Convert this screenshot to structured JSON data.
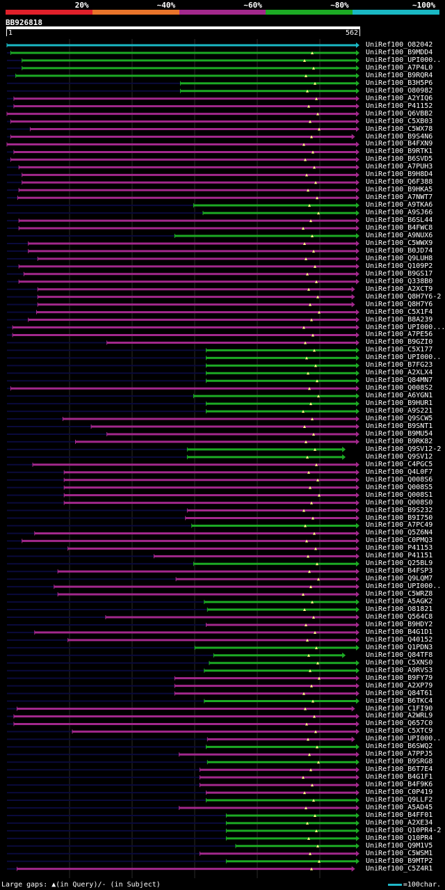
{
  "legend": {
    "segments": [
      {
        "label": "20%",
        "color": "#e0202a"
      },
      {
        "label": "~40%",
        "color": "#e8742a"
      },
      {
        "label": "~60%",
        "color": "#a2288c"
      },
      {
        "label": "~80%",
        "color": "#1caa24"
      },
      {
        "label": "~100%",
        "color": "#1ab8c4"
      }
    ]
  },
  "query": {
    "name": "BB926818",
    "start": "1",
    "end": "562"
  },
  "hits": [
    {
      "name": "UniRef100_O82042",
      "color": "teal",
      "start": 1,
      "end": 562,
      "full": true
    },
    {
      "name": "UniRef100_B9MDD4",
      "color": "green",
      "start": 7,
      "end": 562
    },
    {
      "name": "UniRef100_UPI000..",
      "color": "green",
      "start": 25,
      "end": 562
    },
    {
      "name": "UniRef100_A7P4L0",
      "color": "green",
      "start": 25,
      "end": 562
    },
    {
      "name": "UniRef100_B9RQR4",
      "color": "green",
      "start": 15,
      "end": 562
    },
    {
      "name": "UniRef100_B3H5P6",
      "color": "green",
      "start": 277,
      "end": 562
    },
    {
      "name": "UniRef100_O80982",
      "color": "green",
      "start": 277,
      "end": 562
    },
    {
      "name": "UniRef100_A2YIQ6",
      "color": "purple",
      "start": 12,
      "end": 562
    },
    {
      "name": "UniRef100_P41152",
      "color": "purple",
      "start": 12,
      "end": 562
    },
    {
      "name": "UniRef100_Q6VBB2",
      "color": "purple",
      "start": 1,
      "end": 562
    },
    {
      "name": "UniRef100_C5XB03",
      "color": "purple",
      "start": 7,
      "end": 562
    },
    {
      "name": "UniRef100_C5WX78",
      "color": "purple",
      "start": 38,
      "end": 562
    },
    {
      "name": "UniRef100_B9S4N6",
      "color": "purple",
      "start": 7,
      "end": 555
    },
    {
      "name": "UniRef100_B4FXN9",
      "color": "purple",
      "start": 1,
      "end": 562
    },
    {
      "name": "UniRef100_B9RTK1",
      "color": "purple",
      "start": 12,
      "end": 562
    },
    {
      "name": "UniRef100_B6SVD5",
      "color": "purple",
      "start": 7,
      "end": 562
    },
    {
      "name": "UniRef100_A7PUH3",
      "color": "purple",
      "start": 20,
      "end": 562
    },
    {
      "name": "UniRef100_B9H8D4",
      "color": "purple",
      "start": 25,
      "end": 562
    },
    {
      "name": "UniRef100_Q6F388",
      "color": "purple",
      "start": 25,
      "end": 562
    },
    {
      "name": "UniRef100_B9HKA5",
      "color": "purple",
      "start": 20,
      "end": 562
    },
    {
      "name": "UniRef100_A7NWT7",
      "color": "purple",
      "start": 18,
      "end": 562
    },
    {
      "name": "UniRef100_A9TKA6",
      "color": "green",
      "start": 298,
      "end": 562
    },
    {
      "name": "UniRef100_A9SJ66",
      "color": "green",
      "start": 313,
      "end": 562
    },
    {
      "name": "UniRef100_B6SL44",
      "color": "purple",
      "start": 20,
      "end": 562
    },
    {
      "name": "UniRef100_B4FWC8",
      "color": "purple",
      "start": 20,
      "end": 562
    },
    {
      "name": "UniRef100_A9NUX6",
      "color": "green",
      "start": 268,
      "end": 562
    },
    {
      "name": "UniRef100_C5WWX9",
      "color": "purple",
      "start": 35,
      "end": 562
    },
    {
      "name": "UniRef100_B0JD74",
      "color": "purple",
      "start": 35,
      "end": 562
    },
    {
      "name": "UniRef100_Q9LUH8",
      "color": "purple",
      "start": 50,
      "end": 562
    },
    {
      "name": "UniRef100_Q109P2",
      "color": "purple",
      "start": 20,
      "end": 562
    },
    {
      "name": "UniRef100_B9GS17",
      "color": "purple",
      "start": 28,
      "end": 562
    },
    {
      "name": "UniRef100_Q338B0",
      "color": "purple",
      "start": 20,
      "end": 562
    },
    {
      "name": "UniRef100_A2XCT9",
      "color": "purple",
      "start": 50,
      "end": 555
    },
    {
      "name": "UniRef100_Q8H7Y6-2",
      "color": "purple",
      "start": 50,
      "end": 555
    },
    {
      "name": "UniRef100_Q8H7Y6",
      "color": "purple",
      "start": 50,
      "end": 555
    },
    {
      "name": "UniRef100_C5X1F4",
      "color": "purple",
      "start": 48,
      "end": 562
    },
    {
      "name": "UniRef100_B8A239",
      "color": "purple",
      "start": 35,
      "end": 562
    },
    {
      "name": "UniRef100_UPI000...",
      "color": "purple",
      "start": 10,
      "end": 562
    },
    {
      "name": "UniRef100_A7PE56",
      "color": "purple",
      "start": 10,
      "end": 562
    },
    {
      "name": "UniRef100_B9GZI0",
      "color": "purple",
      "start": 160,
      "end": 562
    },
    {
      "name": "UniRef100_C5X177",
      "color": "green",
      "start": 318,
      "end": 562
    },
    {
      "name": "UniRef100_UPI000..",
      "color": "green",
      "start": 318,
      "end": 562
    },
    {
      "name": "UniRef100_B7FG23",
      "color": "green",
      "start": 318,
      "end": 562
    },
    {
      "name": "UniRef100_A2XLX4",
      "color": "green",
      "start": 318,
      "end": 562
    },
    {
      "name": "UniRef100_Q84MN7",
      "color": "green",
      "start": 318,
      "end": 562
    },
    {
      "name": "UniRef100_Q008S2",
      "color": "purple",
      "start": 7,
      "end": 562
    },
    {
      "name": "UniRef100_A6YGN1",
      "color": "green",
      "start": 298,
      "end": 562
    },
    {
      "name": "UniRef100_B9HUR1",
      "color": "green",
      "start": 318,
      "end": 562
    },
    {
      "name": "UniRef100_A9S221",
      "color": "green",
      "start": 318,
      "end": 562
    },
    {
      "name": "UniRef100_Q9SCW5",
      "color": "purple",
      "start": 90,
      "end": 562
    },
    {
      "name": "UniRef100_B9SNT1",
      "color": "purple",
      "start": 135,
      "end": 562
    },
    {
      "name": "UniRef100_B9MU54",
      "color": "purple",
      "start": 160,
      "end": 562
    },
    {
      "name": "UniRef100_B9RK82",
      "color": "purple",
      "start": 110,
      "end": 562
    },
    {
      "name": "UniRef100_Q9SV12-2",
      "color": "green",
      "start": 288,
      "end": 540
    },
    {
      "name": "UniRef100_Q9SV12",
      "color": "green",
      "start": 288,
      "end": 540
    },
    {
      "name": "UniRef100_C4PGC5",
      "color": "purple",
      "start": 42,
      "end": 562
    },
    {
      "name": "UniRef100_Q4L0F7",
      "color": "purple",
      "start": 92,
      "end": 562
    },
    {
      "name": "UniRef100_Q008S6",
      "color": "purple",
      "start": 92,
      "end": 562
    },
    {
      "name": "UniRef100_Q008S5",
      "color": "purple",
      "start": 92,
      "end": 562
    },
    {
      "name": "UniRef100_Q008S1",
      "color": "purple",
      "start": 92,
      "end": 562
    },
    {
      "name": "UniRef100_Q008S0",
      "color": "purple",
      "start": 92,
      "end": 562
    },
    {
      "name": "UniRef100_B9S232",
      "color": "purple",
      "start": 288,
      "end": 562
    },
    {
      "name": "UniRef100_B9I750",
      "color": "purple",
      "start": 285,
      "end": 562
    },
    {
      "name": "UniRef100_A7PC49",
      "color": "green",
      "start": 295,
      "end": 562
    },
    {
      "name": "UniRef100_Q5Z6N4",
      "color": "purple",
      "start": 45,
      "end": 562
    },
    {
      "name": "UniRef100_C0PMQ3",
      "color": "purple",
      "start": 25,
      "end": 562
    },
    {
      "name": "UniRef100_P41153",
      "color": "purple",
      "start": 98,
      "end": 562
    },
    {
      "name": "UniRef100_P41151",
      "color": "purple",
      "start": 235,
      "end": 562
    },
    {
      "name": "UniRef100_Q25BL9",
      "color": "green",
      "start": 298,
      "end": 562
    },
    {
      "name": "UniRef100_B4FSP3",
      "color": "purple",
      "start": 82,
      "end": 562
    },
    {
      "name": "UniRef100_Q9LQM7",
      "color": "purple",
      "start": 270,
      "end": 562
    },
    {
      "name": "UniRef100_UPI000..",
      "color": "purple",
      "start": 76,
      "end": 562
    },
    {
      "name": "UniRef100_C5WRZ8",
      "color": "purple",
      "start": 82,
      "end": 562
    },
    {
      "name": "UniRef100_A5AGK2",
      "color": "green",
      "start": 315,
      "end": 562
    },
    {
      "name": "UniRef100_O81821",
      "color": "green",
      "start": 320,
      "end": 562
    },
    {
      "name": "UniRef100_Q564C8",
      "color": "purple",
      "start": 158,
      "end": 562
    },
    {
      "name": "UniRef100_B9HDY2",
      "color": "purple",
      "start": 318,
      "end": 562
    },
    {
      "name": "UniRef100_B4G1D1",
      "color": "purple",
      "start": 45,
      "end": 562
    },
    {
      "name": "UniRef100_Q40152",
      "color": "purple",
      "start": 98,
      "end": 562
    },
    {
      "name": "UniRef100_Q1PDN3",
      "color": "green",
      "start": 300,
      "end": 562
    },
    {
      "name": "UniRef100_Q84TF8",
      "color": "green",
      "start": 330,
      "end": 540
    },
    {
      "name": "UniRef100_C5XNS0",
      "color": "green",
      "start": 323,
      "end": 562
    },
    {
      "name": "UniRef100_A9RVS3",
      "color": "green",
      "start": 315,
      "end": 562
    },
    {
      "name": "UniRef100_B9FY79",
      "color": "purple",
      "start": 268,
      "end": 562
    },
    {
      "name": "UniRef100_A2XP79",
      "color": "purple",
      "start": 268,
      "end": 562
    },
    {
      "name": "UniRef100_Q84T61",
      "color": "purple",
      "start": 268,
      "end": 562
    },
    {
      "name": "UniRef100_B6TKC4",
      "color": "green",
      "start": 315,
      "end": 562
    },
    {
      "name": "UniRef100_C1FI90",
      "color": "purple",
      "start": 17,
      "end": 555
    },
    {
      "name": "UniRef100_A2WRL9",
      "color": "purple",
      "start": 12,
      "end": 562
    },
    {
      "name": "UniRef100_Q657C0",
      "color": "purple",
      "start": 12,
      "end": 562
    },
    {
      "name": "UniRef100_C5XTC9",
      "color": "purple",
      "start": 105,
      "end": 562
    },
    {
      "name": "UniRef100_UPI000..",
      "color": "purple",
      "start": 320,
      "end": 555
    },
    {
      "name": "UniRef100_B6SWQ2",
      "color": "green",
      "start": 318,
      "end": 562
    },
    {
      "name": "UniRef100_A7PPJ5",
      "color": "purple",
      "start": 275,
      "end": 562
    },
    {
      "name": "UniRef100_B9SRG8",
      "color": "green",
      "start": 320,
      "end": 562
    },
    {
      "name": "UniRef100_B6T7E4",
      "color": "purple",
      "start": 308,
      "end": 562
    },
    {
      "name": "UniRef100_B4G1F1",
      "color": "purple",
      "start": 308,
      "end": 562
    },
    {
      "name": "UniRef100_B4F9K6",
      "color": "purple",
      "start": 308,
      "end": 562
    },
    {
      "name": "UniRef100_C0P419",
      "color": "purple",
      "start": 318,
      "end": 562
    },
    {
      "name": "UniRef100_Q9LLF2",
      "color": "green",
      "start": 318,
      "end": 562
    },
    {
      "name": "UniRef100_A5AD45",
      "color": "purple",
      "start": 275,
      "end": 562
    },
    {
      "name": "UniRef100_B4FF01",
      "color": "green",
      "start": 350,
      "end": 562
    },
    {
      "name": "UniRef100_A2XE34",
      "color": "green",
      "start": 350,
      "end": 562
    },
    {
      "name": "UniRef100_Q10PR4-2",
      "color": "green",
      "start": 350,
      "end": 562
    },
    {
      "name": "UniRef100_Q10PR4",
      "color": "green",
      "start": 350,
      "end": 562
    },
    {
      "name": "UniRef100_Q9M1V5",
      "color": "green",
      "start": 365,
      "end": 562
    },
    {
      "name": "UniRef100_C5WSM1",
      "color": "purple",
      "start": 308,
      "end": 562
    },
    {
      "name": "UniRef100_B9MTP2",
      "color": "green",
      "start": 350,
      "end": 562
    },
    {
      "name": "UniRef100_C5Z4R1",
      "color": "purple",
      "start": 17,
      "end": 555
    }
  ],
  "footer": {
    "gaps_text": "Large gaps: ▲(in Query)/- (in Subject)",
    "scale_text": "=100char."
  },
  "colors": {
    "teal": "#1ab8c4",
    "green": "#1caa24",
    "purple": "#a2288c",
    "navy": "#0a0a3c",
    "marker": "#ffff80"
  }
}
